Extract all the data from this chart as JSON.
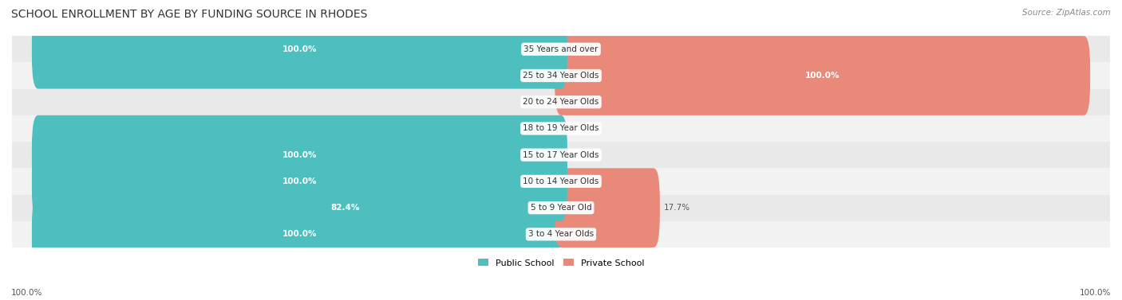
{
  "title": "SCHOOL ENROLLMENT BY AGE BY FUNDING SOURCE IN RHODES",
  "source": "Source: ZipAtlas.com",
  "categories": [
    "3 to 4 Year Olds",
    "5 to 9 Year Old",
    "10 to 14 Year Olds",
    "15 to 17 Year Olds",
    "18 to 19 Year Olds",
    "20 to 24 Year Olds",
    "25 to 34 Year Olds",
    "35 Years and over"
  ],
  "public_values": [
    100.0,
    82.4,
    100.0,
    100.0,
    0.0,
    0.0,
    0.0,
    100.0
  ],
  "private_values": [
    0.0,
    17.7,
    0.0,
    0.0,
    0.0,
    0.0,
    100.0,
    0.0
  ],
  "public_color": "#4DBFBF",
  "private_color": "#E8897A",
  "title_fontsize": 10,
  "label_fontsize": 7.5,
  "value_fontsize": 7.5,
  "legend_fontsize": 8,
  "axis_label_fontsize": 7.5,
  "x_left_label": "100.0%",
  "x_right_label": "100.0%",
  "background_color": "#FFFFFF"
}
